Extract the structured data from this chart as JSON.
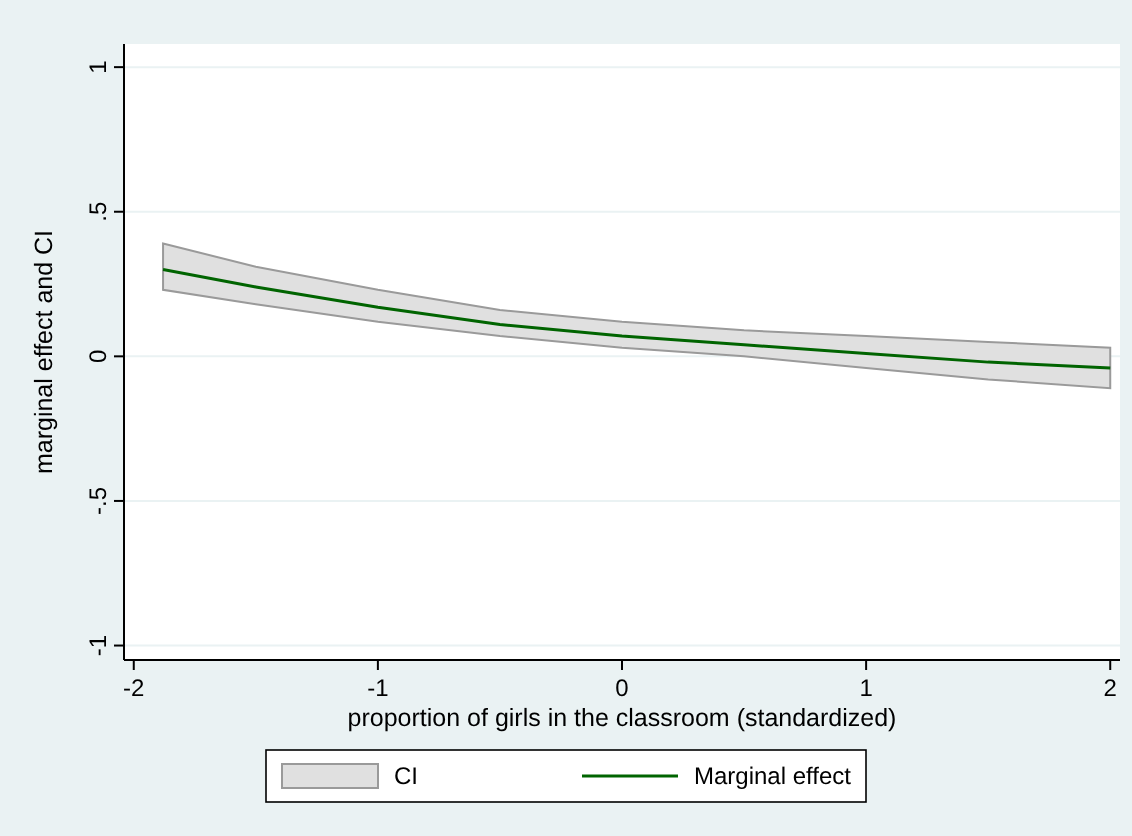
{
  "chart_data": {
    "type": "line",
    "xlabel": "proportion of girls in the classroom (standardized)",
    "ylabel": "marginal effect and CI",
    "x": [
      -1.88,
      -1.5,
      -1,
      -0.5,
      0,
      0.5,
      1,
      1.5,
      2
    ],
    "series": [
      {
        "name": "Marginal effect",
        "color": "#006400",
        "values": [
          0.3,
          0.24,
          0.17,
          0.11,
          0.07,
          0.04,
          0.01,
          -0.02,
          -0.04
        ],
        "lower": [
          0.23,
          0.18,
          0.12,
          0.07,
          0.03,
          0.0,
          -0.04,
          -0.08,
          -0.11
        ],
        "upper": [
          0.39,
          0.31,
          0.23,
          0.16,
          0.12,
          0.09,
          0.07,
          0.05,
          0.03
        ]
      }
    ],
    "annotations": [
      "CI"
    ],
    "xlim": [
      -2.04,
      2.04
    ],
    "ylim": [
      -1.05,
      1.08
    ],
    "xticks": [
      -2,
      -1,
      0,
      1,
      2
    ],
    "yticks": [
      {
        "value": -1,
        "label": "-1"
      },
      {
        "value": -0.5,
        "label": "-.5"
      },
      0,
      {
        "value": 0.5,
        "label": ".5"
      },
      1
    ],
    "grid": "y",
    "legend": "bottom",
    "line_style": "solid"
  }
}
